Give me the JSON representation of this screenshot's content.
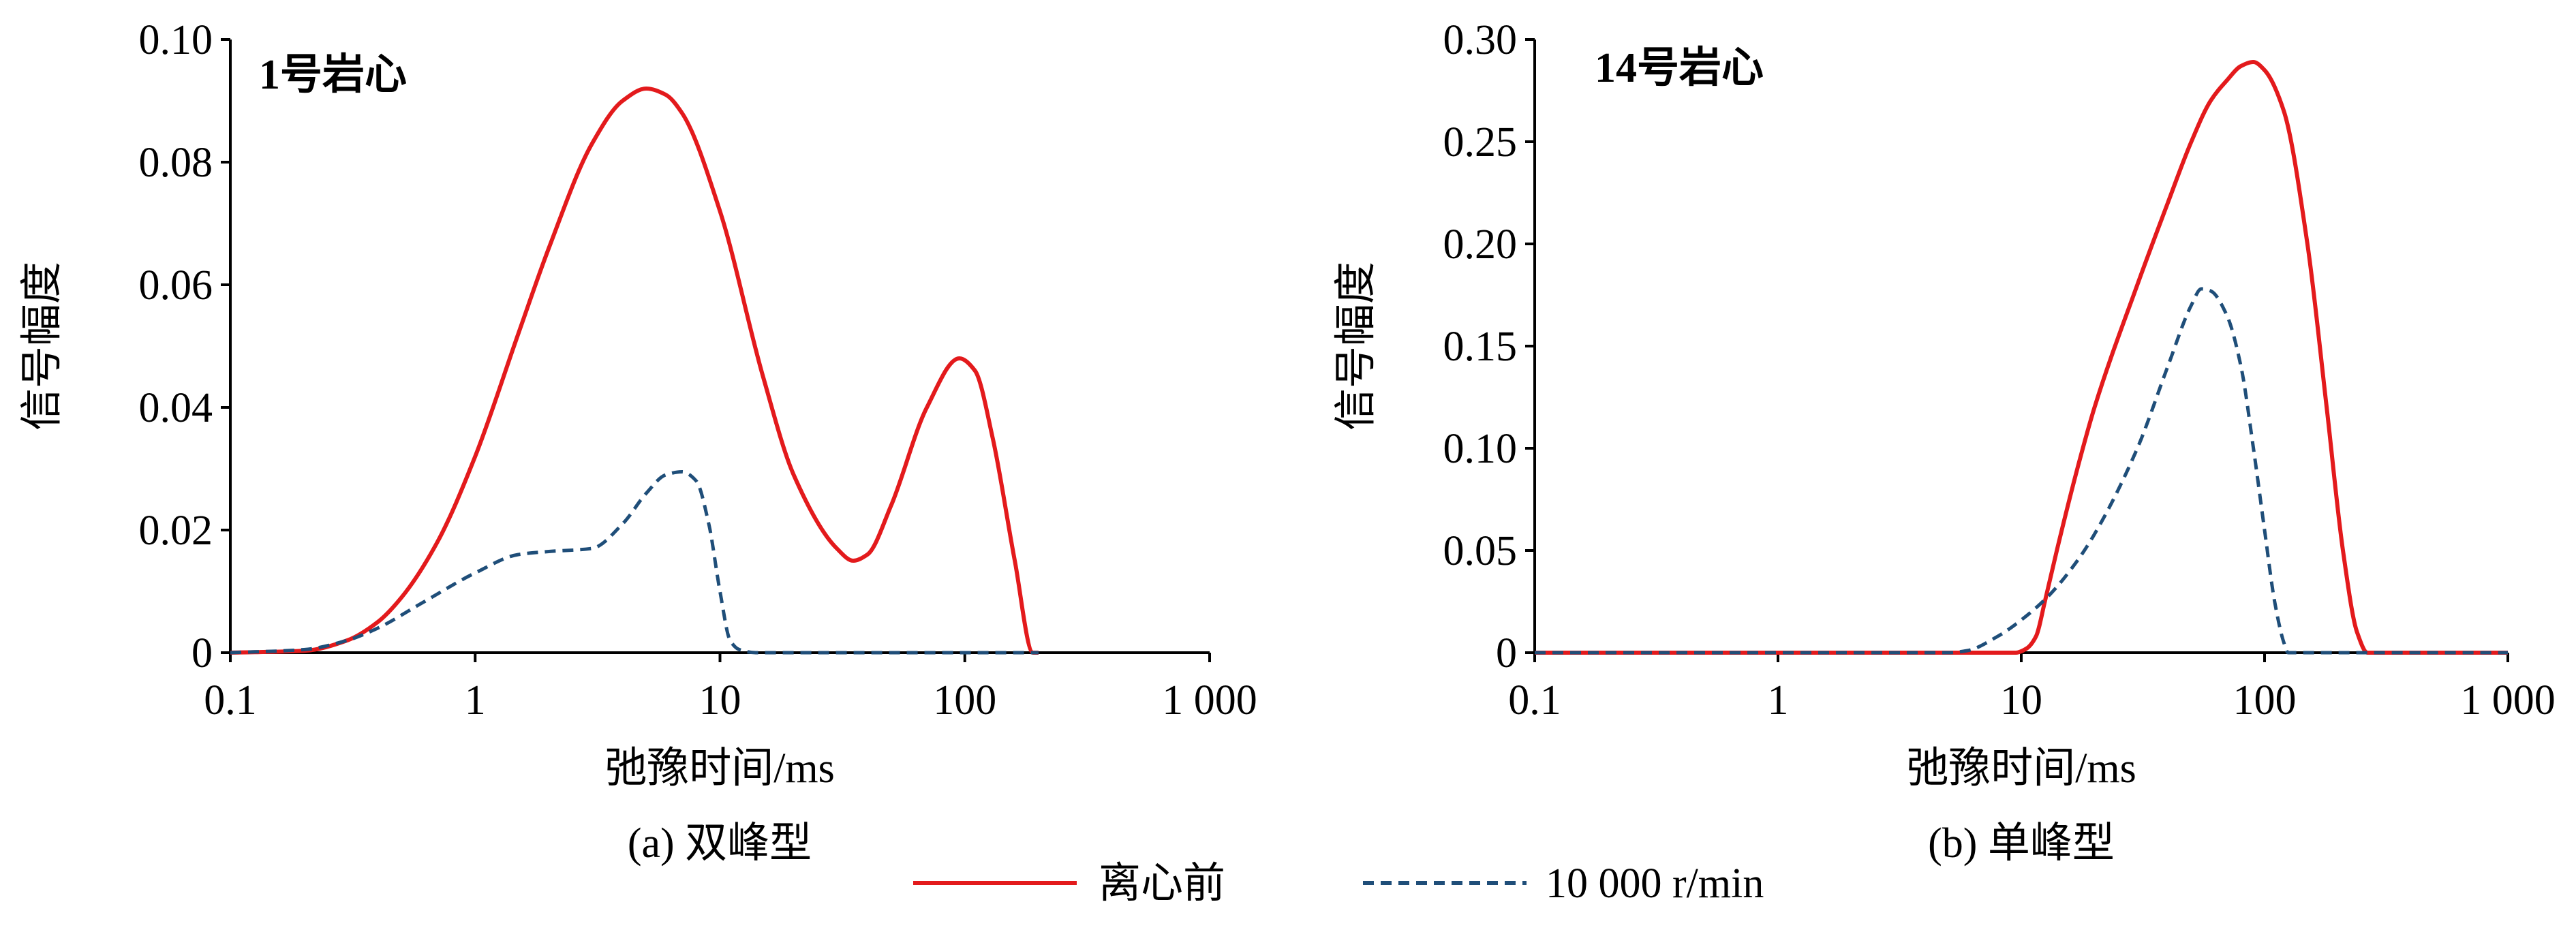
{
  "legend": {
    "items": [
      {
        "label": "离心前",
        "color": "#e31a1c",
        "dash": "solid"
      },
      {
        "label": "10 000 r/min",
        "color": "#1f4e79",
        "dash": "dashed"
      }
    ],
    "placement": "bottom-center"
  },
  "chart_data": [
    {
      "type": "line",
      "panel_caption": "(a) 双峰型",
      "annotation": "1号岩心",
      "xlabel": "弛豫时间/ms",
      "ylabel": "信号幅度",
      "xscale": "log",
      "xlim": [
        0.1,
        1000
      ],
      "ylim": [
        0,
        0.1
      ],
      "xticks": [
        0.1,
        1,
        10,
        100,
        1000
      ],
      "xtick_labels": [
        "0.1",
        "1",
        "10",
        "100",
        "1 000"
      ],
      "yticks": [
        0,
        0.02,
        0.04,
        0.06,
        0.08,
        0.1
      ],
      "ytick_labels": [
        "0",
        "0.02",
        "0.04",
        "0.06",
        "0.08",
        "0.10"
      ],
      "grid": false,
      "series": [
        {
          "name": "离心前",
          "color": "#e31a1c",
          "dash": "solid",
          "x": [
            0.1,
            0.2,
            0.3,
            0.4,
            0.5,
            0.7,
            1,
            1.5,
            2,
            3,
            4,
            5,
            6,
            7,
            10,
            15,
            20,
            30,
            35,
            40,
            50,
            70,
            95,
            110,
            130,
            160,
            190,
            200
          ],
          "y": [
            0,
            0.0003,
            0.002,
            0.005,
            0.009,
            0.018,
            0.032,
            0.052,
            0.066,
            0.083,
            0.09,
            0.092,
            0.091,
            0.088,
            0.072,
            0.045,
            0.029,
            0.017,
            0.015,
            0.016,
            0.024,
            0.04,
            0.048,
            0.046,
            0.035,
            0.015,
            0,
            0
          ]
        },
        {
          "name": "10 000 r/min",
          "color": "#1f4e79",
          "dash": "dashed",
          "x": [
            0.1,
            0.2,
            0.3,
            0.4,
            0.6,
            1,
            1.5,
            2,
            3,
            4,
            5,
            6,
            7,
            8,
            9,
            10,
            11,
            12,
            14,
            20,
            200
          ],
          "y": [
            0,
            0.0005,
            0.002,
            0.004,
            0.008,
            0.013,
            0.016,
            0.0165,
            0.017,
            0.021,
            0.026,
            0.029,
            0.0295,
            0.028,
            0.021,
            0.01,
            0.002,
            0.0005,
            0,
            0,
            0
          ]
        }
      ]
    },
    {
      "type": "line",
      "panel_caption": "(b) 单峰型",
      "annotation": "14号岩心",
      "xlabel": "弛豫时间/ms",
      "ylabel": "信号幅度",
      "xscale": "log",
      "xlim": [
        0.1,
        1000
      ],
      "ylim": [
        0,
        0.3
      ],
      "xticks": [
        0.1,
        1,
        10,
        100,
        1000
      ],
      "xtick_labels": [
        "0.1",
        "1",
        "10",
        "100",
        "1 000"
      ],
      "yticks": [
        0,
        0.05,
        0.1,
        0.15,
        0.2,
        0.25,
        0.3
      ],
      "ytick_labels": [
        "0",
        "0.05",
        "0.10",
        "0.15",
        "0.20",
        "0.25",
        "0.30"
      ],
      "grid": false,
      "series": [
        {
          "name": "离心前",
          "color": "#e31a1c",
          "dash": "solid",
          "x": [
            0.1,
            1,
            5,
            9.5,
            10.5,
            11.5,
            12.5,
            14,
            17,
            20,
            30,
            40,
            50,
            60,
            70,
            80,
            90,
            100,
            120,
            150,
            180,
            210,
            240,
            265,
            280,
            1000
          ],
          "y": [
            0,
            0,
            0,
            0,
            0.002,
            0.008,
            0.025,
            0.05,
            0.09,
            0.12,
            0.18,
            0.22,
            0.25,
            0.27,
            0.28,
            0.287,
            0.289,
            0.285,
            0.265,
            0.2,
            0.12,
            0.05,
            0.01,
            0,
            0,
            0
          ]
        },
        {
          "name": "10 000 r/min",
          "color": "#1f4e79",
          "dash": "dashed",
          "x": [
            0.1,
            1,
            5,
            6,
            8,
            10,
            13,
            17,
            20,
            30,
            40,
            50,
            55,
            60,
            70,
            80,
            90,
            100,
            110,
            120,
            125,
            1000
          ],
          "y": [
            0,
            0,
            0,
            0.001,
            0.008,
            0.016,
            0.028,
            0.045,
            0.058,
            0.1,
            0.14,
            0.17,
            0.178,
            0.177,
            0.165,
            0.14,
            0.1,
            0.06,
            0.025,
            0.005,
            0,
            0
          ]
        }
      ]
    }
  ]
}
